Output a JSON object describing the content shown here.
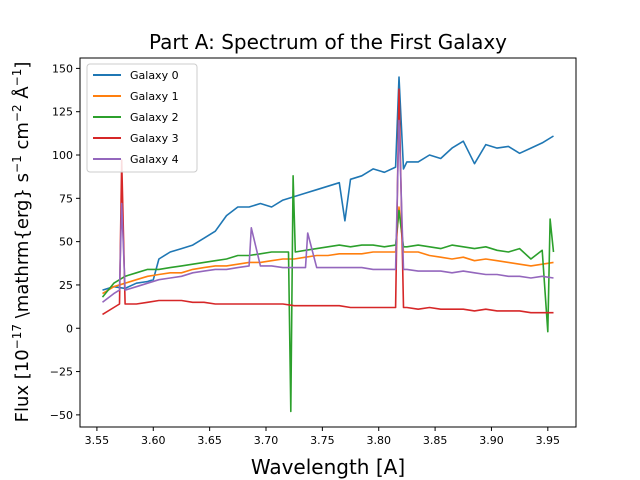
{
  "chart_data": {
    "type": "line",
    "title": "Part A: Spectrum of the First Galaxy",
    "xlabel": "Wavelength [$\\AA$]",
    "xlabel_display": "Wavelength [A]",
    "ylabel_prefix": "Flux [10",
    "ylabel_exponent": "−17",
    "ylabel_middle": " \\mathrm{erg} s",
    "ylabel_exp_s": "−1",
    "ylabel_cm": " cm",
    "ylabel_exp_cm": "−2",
    "ylabel_a": " Å",
    "ylabel_exp_a": "−1",
    "ylabel_end": "]",
    "xlim": [
      3.535,
      3.975
    ],
    "ylim": [
      -57,
      156
    ],
    "xticks": [
      3.55,
      3.6,
      3.65,
      3.7,
      3.75,
      3.8,
      3.85,
      3.9,
      3.95
    ],
    "xtick_labels": [
      "3.55",
      "3.60",
      "3.65",
      "3.70",
      "3.75",
      "3.80",
      "3.85",
      "3.90",
      "3.95"
    ],
    "yticks": [
      -50,
      -25,
      0,
      25,
      50,
      75,
      100,
      125,
      150
    ],
    "ytick_labels": [
      "−50",
      "−25",
      "0",
      "25",
      "50",
      "75",
      "100",
      "125",
      "150"
    ],
    "legend_position": "upper left",
    "grid": false,
    "series": [
      {
        "name": "Galaxy 0",
        "color": "#1f77b4",
        "x": [
          3.555,
          3.565,
          3.575,
          3.585,
          3.595,
          3.6,
          3.605,
          3.615,
          3.625,
          3.635,
          3.645,
          3.655,
          3.665,
          3.675,
          3.685,
          3.695,
          3.705,
          3.715,
          3.725,
          3.735,
          3.745,
          3.755,
          3.765,
          3.77,
          3.775,
          3.785,
          3.795,
          3.805,
          3.815,
          3.818,
          3.822,
          3.825,
          3.835,
          3.845,
          3.855,
          3.865,
          3.875,
          3.885,
          3.895,
          3.905,
          3.915,
          3.925,
          3.935,
          3.945,
          3.955
        ],
        "y": [
          22,
          24,
          23,
          26,
          27,
          28,
          40,
          44,
          46,
          48,
          52,
          56,
          65,
          70,
          70,
          72,
          70,
          74,
          76,
          78,
          80,
          82,
          84,
          62,
          86,
          88,
          92,
          90,
          93,
          145,
          92,
          96,
          96,
          100,
          98,
          104,
          108,
          95,
          106,
          104,
          105,
          101,
          104,
          107,
          111
        ]
      },
      {
        "name": "Galaxy 1",
        "color": "#ff7f0e",
        "x": [
          3.555,
          3.565,
          3.575,
          3.585,
          3.595,
          3.605,
          3.615,
          3.625,
          3.635,
          3.645,
          3.655,
          3.665,
          3.675,
          3.685,
          3.695,
          3.705,
          3.715,
          3.725,
          3.735,
          3.745,
          3.755,
          3.765,
          3.775,
          3.785,
          3.795,
          3.805,
          3.815,
          3.818,
          3.822,
          3.825,
          3.835,
          3.845,
          3.855,
          3.865,
          3.875,
          3.885,
          3.895,
          3.905,
          3.915,
          3.925,
          3.935,
          3.945,
          3.955
        ],
        "y": [
          20,
          24,
          26,
          28,
          30,
          31,
          32,
          32,
          34,
          35,
          36,
          36,
          37,
          38,
          38,
          39,
          40,
          40,
          41,
          42,
          42,
          43,
          43,
          43,
          44,
          44,
          44,
          70,
          44,
          44,
          44,
          42,
          41,
          40,
          41,
          39,
          40,
          39,
          38,
          37,
          36,
          37,
          38
        ]
      },
      {
        "name": "Galaxy 2",
        "color": "#2ca02c",
        "x": [
          3.555,
          3.565,
          3.575,
          3.585,
          3.595,
          3.605,
          3.615,
          3.625,
          3.635,
          3.645,
          3.655,
          3.665,
          3.675,
          3.685,
          3.695,
          3.705,
          3.715,
          3.72,
          3.722,
          3.724,
          3.726,
          3.735,
          3.745,
          3.755,
          3.765,
          3.775,
          3.785,
          3.795,
          3.805,
          3.815,
          3.818,
          3.822,
          3.825,
          3.835,
          3.845,
          3.855,
          3.865,
          3.875,
          3.885,
          3.895,
          3.905,
          3.915,
          3.925,
          3.935,
          3.945,
          3.95,
          3.952,
          3.955
        ],
        "y": [
          18,
          26,
          30,
          32,
          34,
          34,
          35,
          36,
          37,
          38,
          39,
          40,
          42,
          42,
          43,
          44,
          44,
          44,
          -48,
          88,
          44,
          45,
          46,
          47,
          48,
          47,
          48,
          48,
          47,
          48,
          68,
          47,
          47,
          48,
          47,
          46,
          48,
          47,
          46,
          47,
          45,
          44,
          46,
          40,
          45,
          -2,
          63,
          44
        ]
      },
      {
        "name": "Galaxy 3",
        "color": "#d62728",
        "x": [
          3.555,
          3.565,
          3.57,
          3.572,
          3.575,
          3.585,
          3.595,
          3.605,
          3.615,
          3.625,
          3.635,
          3.645,
          3.655,
          3.665,
          3.675,
          3.685,
          3.695,
          3.705,
          3.715,
          3.725,
          3.735,
          3.745,
          3.755,
          3.765,
          3.775,
          3.785,
          3.795,
          3.805,
          3.815,
          3.818,
          3.822,
          3.825,
          3.835,
          3.845,
          3.855,
          3.865,
          3.875,
          3.885,
          3.895,
          3.905,
          3.915,
          3.925,
          3.935,
          3.945,
          3.955
        ],
        "y": [
          8,
          12,
          14,
          97,
          14,
          14,
          15,
          16,
          16,
          16,
          15,
          15,
          14,
          14,
          14,
          14,
          14,
          14,
          14,
          13,
          13,
          13,
          13,
          13,
          12,
          12,
          12,
          12,
          12,
          138,
          12,
          12,
          11,
          12,
          11,
          11,
          11,
          10,
          11,
          10,
          10,
          10,
          9,
          9,
          9
        ]
      },
      {
        "name": "Galaxy 4",
        "color": "#9467bd",
        "x": [
          3.555,
          3.565,
          3.57,
          3.572,
          3.575,
          3.585,
          3.595,
          3.605,
          3.615,
          3.625,
          3.635,
          3.645,
          3.655,
          3.665,
          3.675,
          3.685,
          3.687,
          3.695,
          3.705,
          3.715,
          3.725,
          3.735,
          3.737,
          3.745,
          3.755,
          3.765,
          3.775,
          3.785,
          3.795,
          3.805,
          3.815,
          3.818,
          3.822,
          3.825,
          3.835,
          3.845,
          3.855,
          3.865,
          3.875,
          3.885,
          3.895,
          3.905,
          3.915,
          3.925,
          3.935,
          3.945,
          3.955
        ],
        "y": [
          15,
          20,
          22,
          72,
          22,
          24,
          26,
          28,
          29,
          30,
          32,
          33,
          34,
          34,
          35,
          36,
          58,
          36,
          36,
          35,
          35,
          35,
          55,
          35,
          35,
          35,
          35,
          35,
          34,
          34,
          34,
          120,
          34,
          34,
          33,
          33,
          33,
          32,
          33,
          32,
          31,
          31,
          30,
          30,
          29,
          30,
          29
        ]
      }
    ]
  }
}
